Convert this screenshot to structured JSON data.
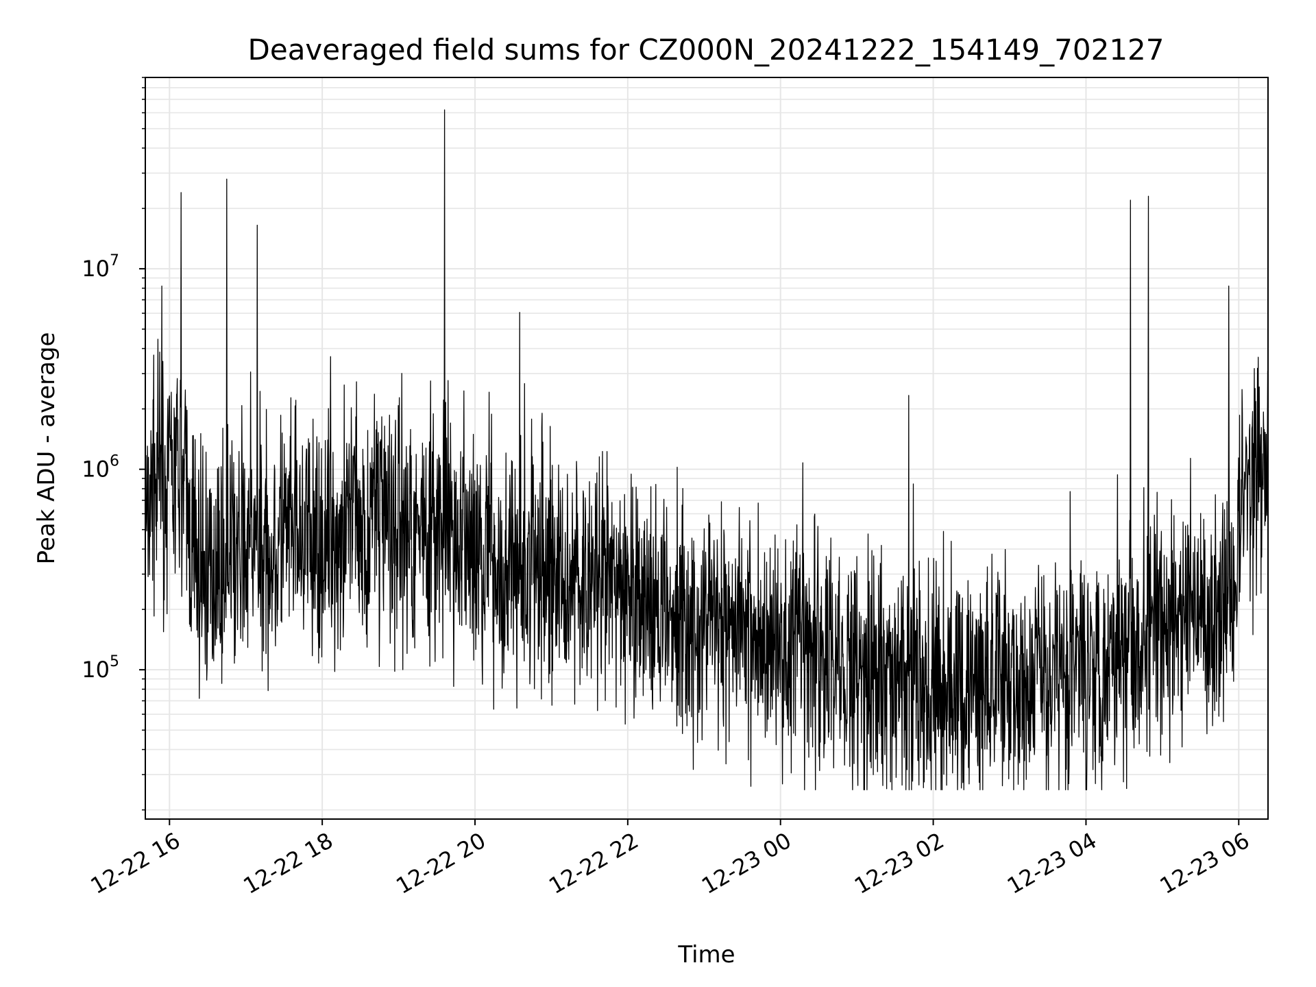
{
  "chart_data": {
    "type": "line",
    "title": "Deaveraged field sums for CZ000N_20241222_154149_702127",
    "xlabel": "Time",
    "ylabel": "Peak ADU - average",
    "yscale": "log",
    "ylim": [
      18000,
      90000000
    ],
    "xlim": [
      "2024-12-22 15:41",
      "2024-12-23 06:23"
    ],
    "grid": true,
    "line_color": "#000000",
    "grid_color": "#e6e6e6",
    "x_ticks": [
      {
        "label": "12-22 16",
        "time": "2024-12-22 16:00"
      },
      {
        "label": "12-22 18",
        "time": "2024-12-22 18:00"
      },
      {
        "label": "12-22 20",
        "time": "2024-12-22 20:00"
      },
      {
        "label": "12-22 22",
        "time": "2024-12-22 22:00"
      },
      {
        "label": "12-23 00",
        "time": "2024-12-23 00:00"
      },
      {
        "label": "12-23 02",
        "time": "2024-12-23 02:00"
      },
      {
        "label": "12-23 04",
        "time": "2024-12-23 04:00"
      },
      {
        "label": "12-23 06",
        "time": "2024-12-23 06:00"
      }
    ],
    "y_ticks": [
      {
        "base": "10",
        "exp": "5",
        "value": 100000
      },
      {
        "base": "10",
        "exp": "6",
        "value": 1000000
      },
      {
        "base": "10",
        "exp": "7",
        "value": 10000000
      }
    ],
    "series": [
      {
        "x": [
          "2024-12-22 15:41",
          "2024-12-22 15:47",
          "2024-12-22 15:53",
          "2024-12-22 16:00",
          "2024-12-22 16:10",
          "2024-12-22 16:20",
          "2024-12-22 16:30",
          "2024-12-22 16:45",
          "2024-12-22 17:00",
          "2024-12-22 17:20",
          "2024-12-22 17:40",
          "2024-12-22 18:00",
          "2024-12-22 18:20",
          "2024-12-22 18:40",
          "2024-12-22 19:00",
          "2024-12-22 19:20",
          "2024-12-22 19:40",
          "2024-12-22 20:00",
          "2024-12-22 20:20",
          "2024-12-22 20:40",
          "2024-12-22 21:00",
          "2024-12-22 21:20",
          "2024-12-22 21:40",
          "2024-12-22 22:00",
          "2024-12-22 22:20",
          "2024-12-22 22:40",
          "2024-12-22 23:00",
          "2024-12-22 23:20",
          "2024-12-22 23:40",
          "2024-12-23 00:00",
          "2024-12-23 00:20",
          "2024-12-23 00:40",
          "2024-12-23 01:00",
          "2024-12-23 01:20",
          "2024-12-23 01:40",
          "2024-12-23 02:00",
          "2024-12-23 02:20",
          "2024-12-23 02:40",
          "2024-12-23 03:00",
          "2024-12-23 03:20",
          "2024-12-23 03:40",
          "2024-12-23 04:00",
          "2024-12-23 04:20",
          "2024-12-23 04:40",
          "2024-12-23 05:00",
          "2024-12-23 05:20",
          "2024-12-23 05:40",
          "2024-12-23 05:55",
          "2024-12-23 06:05",
          "2024-12-23 06:15",
          "2024-12-23 06:23"
        ],
        "y": [
          700000,
          900000,
          850000,
          800000,
          900000,
          350000,
          300000,
          350000,
          380000,
          400000,
          450000,
          400000,
          500000,
          600000,
          550000,
          500000,
          450000,
          400000,
          330000,
          320000,
          300000,
          280000,
          250000,
          260000,
          200000,
          180000,
          170000,
          180000,
          150000,
          130000,
          120000,
          110000,
          100000,
          95000,
          90000,
          85000,
          80000,
          75000,
          85000,
          90000,
          100000,
          110000,
          120000,
          150000,
          160000,
          180000,
          200000,
          250000,
          900000,
          1000000,
          950000
        ]
      }
    ],
    "spikes": [
      {
        "time": "2024-12-22 15:54",
        "value": 8200000
      },
      {
        "time": "2024-12-22 16:09",
        "value": 24000000
      },
      {
        "time": "2024-12-22 16:45",
        "value": 28000000
      },
      {
        "time": "2024-12-22 17:09",
        "value": 16500000
      },
      {
        "time": "2024-12-22 19:36",
        "value": 62000000
      },
      {
        "time": "2024-12-23 04:35",
        "value": 22000000
      },
      {
        "time": "2024-12-23 04:49",
        "value": 23000000
      },
      {
        "time": "2024-12-23 05:52",
        "value": 8200000
      }
    ]
  }
}
